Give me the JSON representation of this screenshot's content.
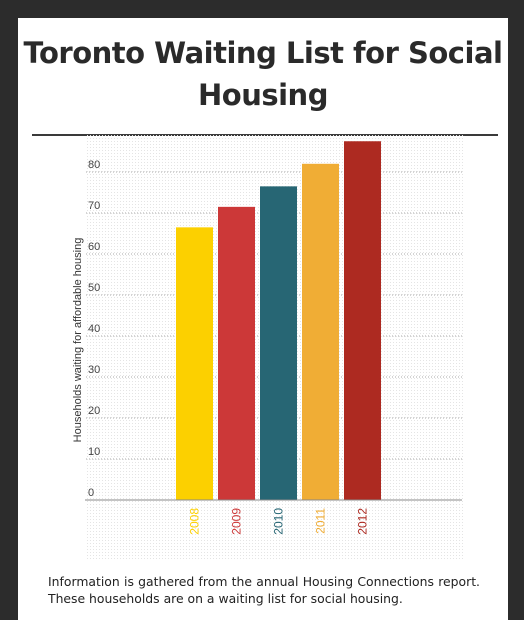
{
  "title": "Toronto Waiting List for Social Housing",
  "caption": "Information is gathered from the annual Housing Connections report. These households are on a waiting list for social housing.",
  "chart_data": {
    "type": "bar",
    "title": "Toronto Waiting List for Social Housing",
    "ylabel": "Households waiting for affordable housing",
    "xlabel": "",
    "categories": [
      "2008",
      "2009",
      "2010",
      "2011",
      "2012"
    ],
    "values": [
      66.5,
      71.5,
      76.5,
      82,
      87.5
    ],
    "colors": [
      "#fcd000",
      "#cc3838",
      "#276674",
      "#f0ad35",
      "#ad2a21"
    ],
    "yticks": [
      0,
      10,
      20,
      30,
      40,
      50,
      60,
      70,
      80
    ],
    "ylim": [
      0,
      90
    ],
    "grid": true,
    "legend": "none"
  }
}
